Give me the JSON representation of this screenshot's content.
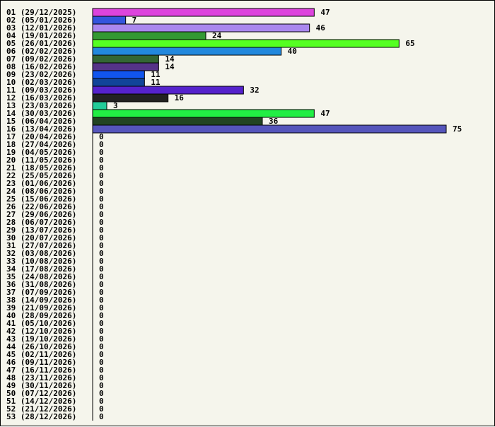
{
  "chart_data": {
    "type": "bar",
    "orientation": "horizontal",
    "title": "",
    "xlabel": "",
    "ylabel": "",
    "grid": false,
    "legend": "none",
    "xlim": [
      0,
      75
    ],
    "categories": [
      "01 (29/12/2025)",
      "02 (05/01/2026)",
      "03 (12/01/2026)",
      "04 (19/01/2026)",
      "05 (26/01/2026)",
      "06 (02/02/2026)",
      "07 (09/02/2026)",
      "08 (16/02/2026)",
      "09 (23/02/2026)",
      "10 (02/03/2026)",
      "11 (09/03/2026)",
      "12 (16/03/2026)",
      "13 (23/03/2026)",
      "14 (30/03/2026)",
      "15 (06/04/2026)",
      "16 (13/04/2026)",
      "17 (20/04/2026)",
      "18 (27/04/2026)",
      "19 (04/05/2026)",
      "20 (11/05/2026)",
      "21 (18/05/2026)",
      "22 (25/05/2026)",
      "23 (01/06/2026)",
      "24 (08/06/2026)",
      "25 (15/06/2026)",
      "26 (22/06/2026)",
      "27 (29/06/2026)",
      "28 (06/07/2026)",
      "29 (13/07/2026)",
      "30 (20/07/2026)",
      "31 (27/07/2026)",
      "32 (03/08/2026)",
      "33 (10/08/2026)",
      "34 (17/08/2026)",
      "35 (24/08/2026)",
      "36 (31/08/2026)",
      "37 (07/09/2026)",
      "38 (14/09/2026)",
      "39 (21/09/2026)",
      "40 (28/09/2026)",
      "41 (05/10/2026)",
      "42 (12/10/2026)",
      "43 (19/10/2026)",
      "44 (26/10/2026)",
      "45 (02/11/2026)",
      "46 (09/11/2026)",
      "47 (16/11/2026)",
      "48 (23/11/2026)",
      "49 (30/11/2026)",
      "50 (07/12/2026)",
      "51 (14/12/2026)",
      "52 (21/12/2026)",
      "53 (28/12/2026)"
    ],
    "values": [
      47,
      7,
      46,
      24,
      65,
      40,
      14,
      14,
      11,
      11,
      32,
      16,
      3,
      47,
      36,
      75,
      0,
      0,
      0,
      0,
      0,
      0,
      0,
      0,
      0,
      0,
      0,
      0,
      0,
      0,
      0,
      0,
      0,
      0,
      0,
      0,
      0,
      0,
      0,
      0,
      0,
      0,
      0,
      0,
      0,
      0,
      0,
      0,
      0,
      0,
      0,
      0,
      0
    ],
    "colors": [
      "#dd44dd",
      "#3355dd",
      "#aa88ee",
      "#339933",
      "#55ff22",
      "#2288dd",
      "#336633",
      "#553388",
      "#1155ee",
      "#114499",
      "#5522cc",
      "#222222",
      "#22cc99",
      "#22ee44",
      "#224422",
      "#5555bb"
    ]
  }
}
